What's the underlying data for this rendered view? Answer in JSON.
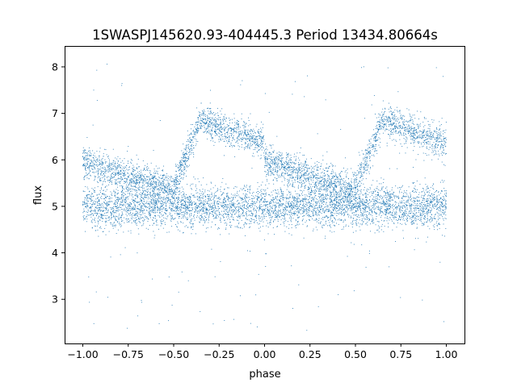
{
  "chart_data": {
    "type": "scatter",
    "title": "1SWASPJ145620.93-404445.3 Period 13434.80664s",
    "xlabel": "phase",
    "ylabel": "flux",
    "xlim": [
      -1.1,
      1.1
    ],
    "ylim": [
      2.05,
      8.45
    ],
    "x_ticks": [
      -1.0,
      -0.75,
      -0.5,
      -0.25,
      0.0,
      0.25,
      0.5,
      0.75,
      1.0
    ],
    "x_tick_labels": [
      "−1.00",
      "−0.75",
      "−0.50",
      "−0.25",
      "0.00",
      "0.25",
      "0.50",
      "0.75",
      "1.00"
    ],
    "y_ticks": [
      3,
      4,
      5,
      6,
      7,
      8
    ],
    "y_tick_labels": [
      "3",
      "4",
      "5",
      "6",
      "7",
      "8"
    ],
    "grid": false,
    "series": [
      {
        "color": "#1f77b4",
        "marker_size": 1,
        "description_points": "phase-folded light curve, two cycles shown (phase -1 to 1)",
        "baseline_flux": 5.0,
        "baseline_scatter": 0.22,
        "outburst_cycle_start_phase": -0.5,
        "outburst_rise_end_phase": -0.35,
        "outburst_peak_flux": 6.85,
        "outburst_decay_end_phase": 0.35,
        "outburst_decay_end_flux": 5.2,
        "pre_outburst_flux": 5.95,
        "pre_outburst_start_phase": -1.0,
        "pre_outburst_end_phase": -0.5,
        "outburst_fraction": 0.45,
        "outlier_min_flux": 2.3,
        "outlier_max_flux": 8.1,
        "points": [
          [
            -0.98,
            5.95
          ],
          [
            -0.9,
            5.85
          ],
          [
            -0.8,
            5.7
          ],
          [
            -0.7,
            5.55
          ],
          [
            -0.6,
            5.45
          ],
          [
            -0.5,
            5.4
          ],
          [
            -0.45,
            6.3
          ],
          [
            -0.4,
            6.7
          ],
          [
            -0.35,
            6.85
          ],
          [
            -0.3,
            6.8
          ],
          [
            -0.25,
            6.6
          ],
          [
            -0.2,
            6.45
          ],
          [
            -0.1,
            6.2
          ],
          [
            0.0,
            6.0
          ],
          [
            0.1,
            5.8
          ],
          [
            0.2,
            5.6
          ],
          [
            0.3,
            5.4
          ],
          [
            0.4,
            5.3
          ],
          [
            0.5,
            5.4
          ],
          [
            0.55,
            6.3
          ],
          [
            0.6,
            6.7
          ],
          [
            0.65,
            6.85
          ],
          [
            0.7,
            6.8
          ],
          [
            0.75,
            6.6
          ],
          [
            0.8,
            6.45
          ],
          [
            0.9,
            6.2
          ],
          [
            1.0,
            6.0
          ],
          [
            -1.0,
            5.0
          ],
          [
            -0.75,
            5.0
          ],
          [
            -0.5,
            5.1
          ],
          [
            -0.25,
            5.05
          ],
          [
            0.0,
            5.0
          ],
          [
            0.25,
            5.0
          ],
          [
            0.5,
            5.1
          ],
          [
            0.75,
            5.05
          ],
          [
            1.0,
            5.0
          ]
        ]
      }
    ]
  }
}
